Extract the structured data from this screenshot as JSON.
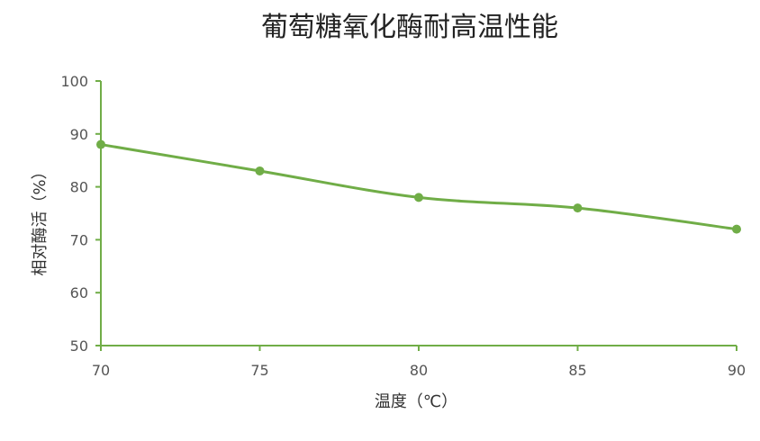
{
  "chart_data": {
    "type": "line",
    "title": "葡萄糖氧化酶耐高温性能",
    "xlabel": "温度（℃）",
    "ylabel": "相对酶活（%）",
    "x": [
      70,
      75,
      80,
      85,
      90
    ],
    "series": [
      {
        "values": [
          88,
          83,
          78,
          76,
          72
        ]
      }
    ],
    "xlim": [
      70,
      90
    ],
    "ylim": [
      50,
      100
    ],
    "xticks": [
      "70",
      "75",
      "80",
      "85",
      "90"
    ],
    "yticks": [
      "50",
      "60",
      "70",
      "80",
      "90",
      "100"
    ],
    "grid": false,
    "smooth": true,
    "markers": true
  },
  "colors": {
    "series": "#70ad47",
    "axis": "#70ad47"
  }
}
